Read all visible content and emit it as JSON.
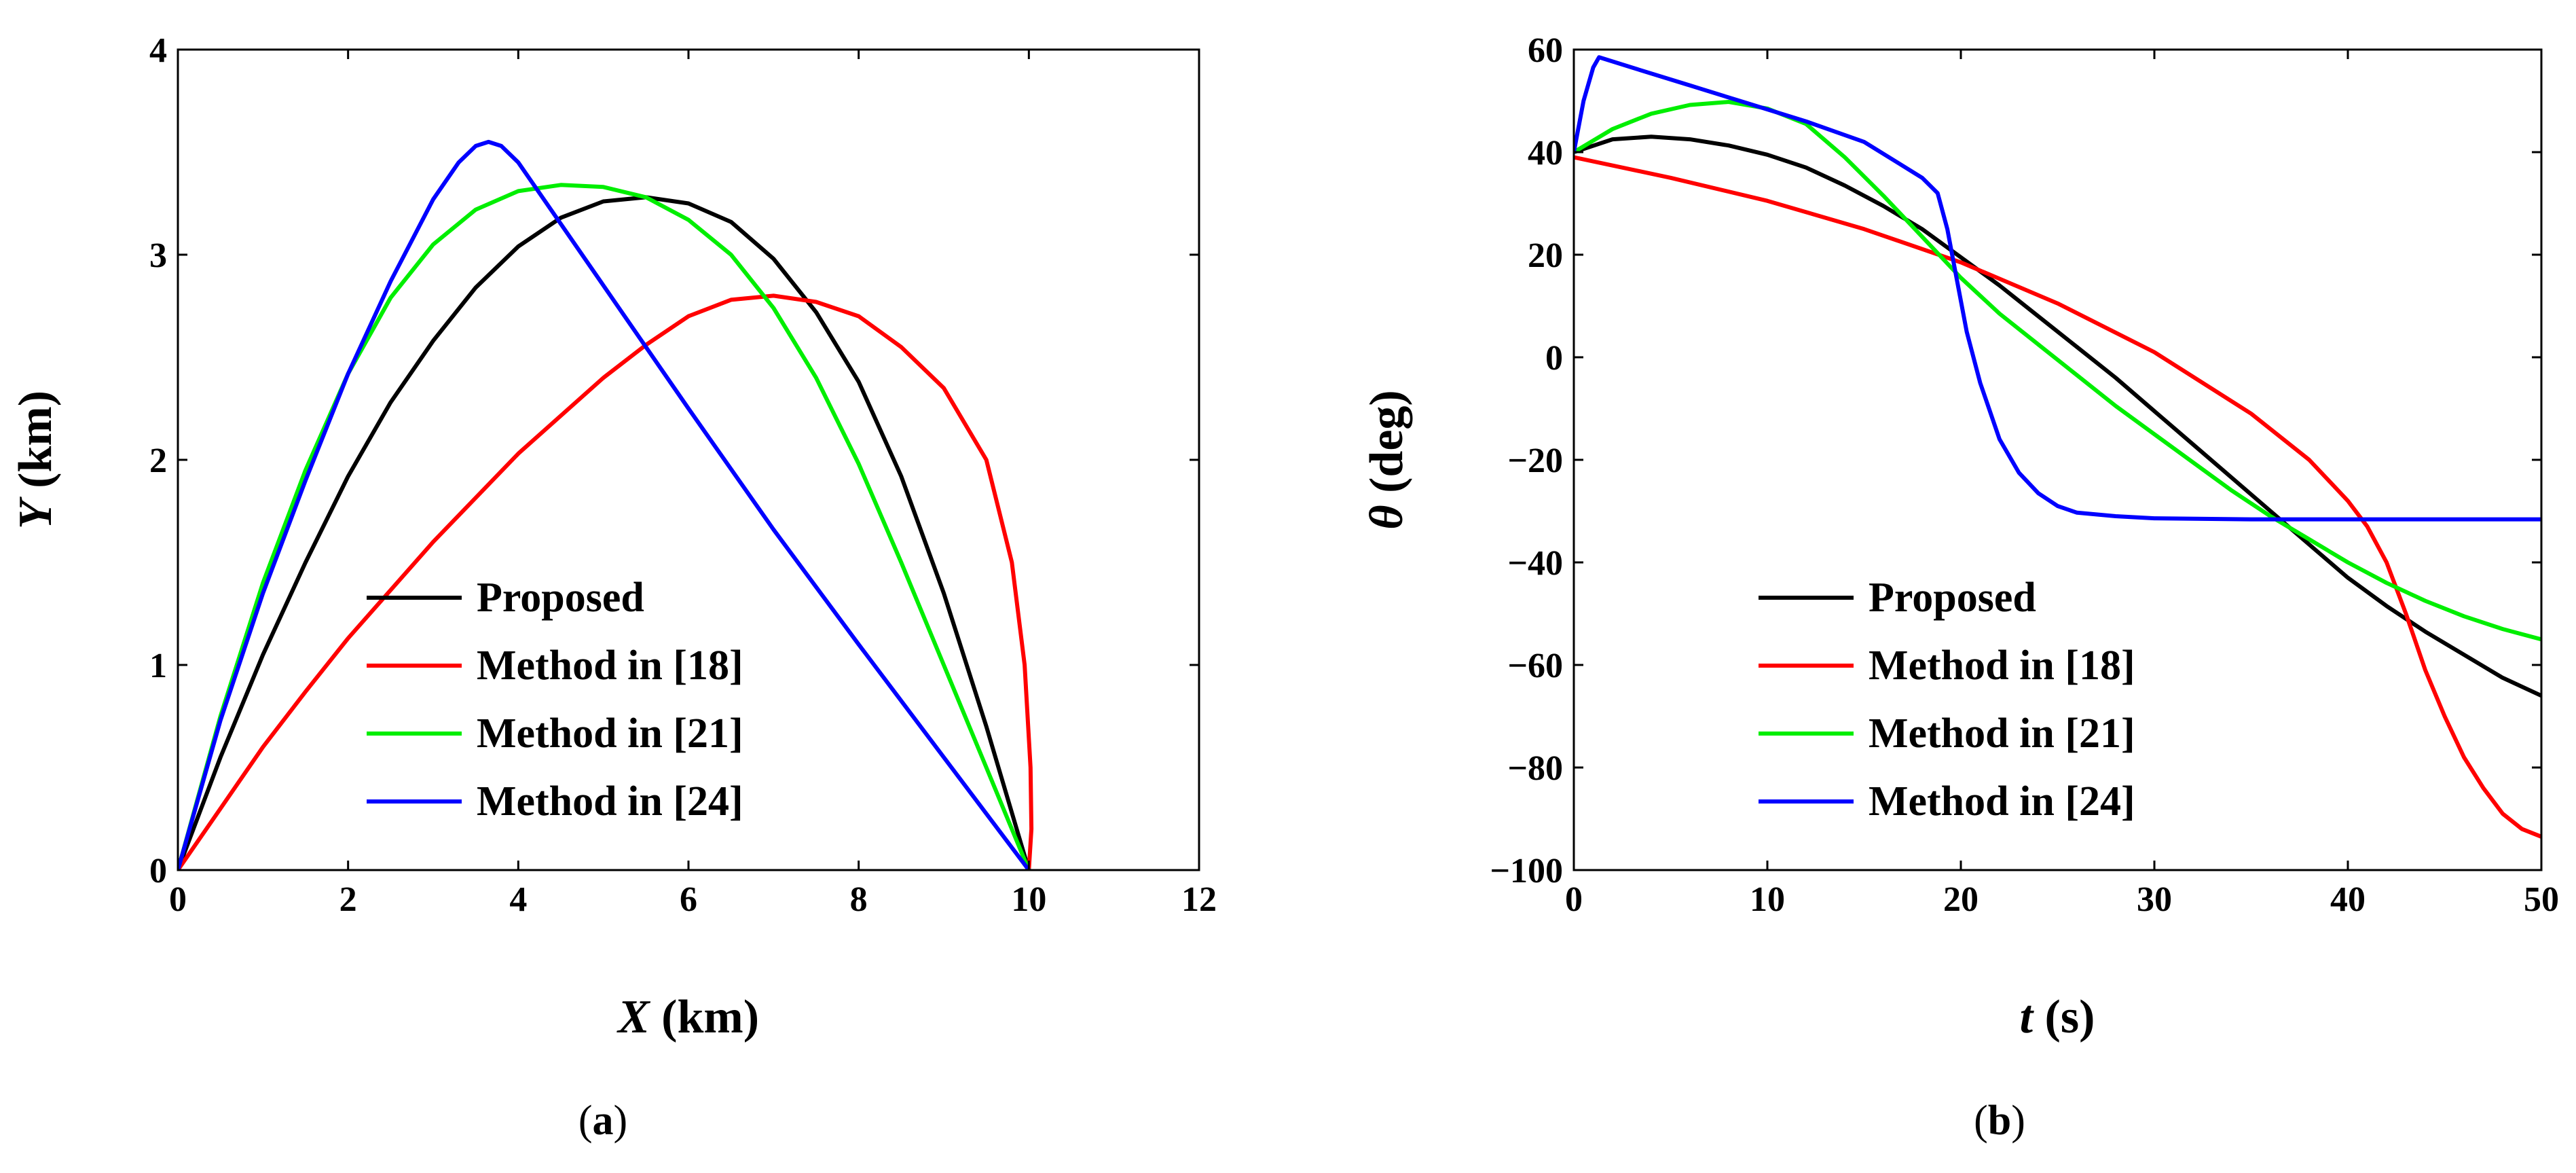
{
  "chart_data": [
    {
      "type": "line",
      "panel_label": "a",
      "xlabel_var": "X",
      "xlabel_unit": "(km)",
      "ylabel_var": "Y",
      "ylabel_unit": "(km)",
      "xlim": [
        0,
        12
      ],
      "ylim": [
        0,
        4
      ],
      "xticks": [
        0,
        2,
        4,
        6,
        8,
        10,
        12
      ],
      "yticks": [
        0,
        1,
        2,
        3,
        4
      ],
      "legend_position": "lower-center",
      "series": [
        {
          "name": "Proposed",
          "color": "#000000",
          "x": [
            0,
            0.5,
            1,
            1.5,
            2,
            2.5,
            3,
            3.5,
            4,
            4.5,
            5,
            5.5,
            6,
            6.5,
            7,
            7.5,
            8,
            8.5,
            9,
            9.5,
            10
          ],
          "y": [
            0,
            0.55,
            1.05,
            1.5,
            1.92,
            2.28,
            2.58,
            2.84,
            3.04,
            3.18,
            3.26,
            3.28,
            3.25,
            3.16,
            2.98,
            2.72,
            2.38,
            1.92,
            1.35,
            0.7,
            0
          ]
        },
        {
          "name": "Method in [18]",
          "color": "#ff0000",
          "x": [
            0,
            0.5,
            1,
            1.5,
            2,
            3,
            4,
            5,
            5.5,
            6,
            6.5,
            7,
            7.5,
            8,
            8.5,
            9,
            9.5,
            9.8,
            9.95,
            10.02,
            10.03,
            10
          ],
          "y": [
            0,
            0.3,
            0.6,
            0.87,
            1.13,
            1.6,
            2.03,
            2.4,
            2.56,
            2.7,
            2.78,
            2.8,
            2.77,
            2.7,
            2.55,
            2.35,
            2.0,
            1.5,
            1.0,
            0.5,
            0.2,
            0
          ]
        },
        {
          "name": "Method in [21]",
          "color": "#00ee00",
          "x": [
            0,
            0.5,
            1,
            1.5,
            2,
            2.5,
            3,
            3.5,
            4,
            4.5,
            5,
            5.5,
            6,
            6.5,
            7,
            7.5,
            8,
            8.5,
            9,
            9.5,
            10
          ],
          "y": [
            0,
            0.75,
            1.4,
            1.95,
            2.42,
            2.79,
            3.05,
            3.22,
            3.31,
            3.34,
            3.33,
            3.28,
            3.17,
            3.0,
            2.74,
            2.4,
            1.98,
            1.5,
            1.0,
            0.5,
            0
          ]
        },
        {
          "name": "Method in [24]",
          "color": "#0000ff",
          "x": [
            0,
            0.5,
            1,
            1.5,
            2,
            2.5,
            3,
            3.3,
            3.5,
            3.65,
            3.8,
            4,
            4.5,
            5,
            6,
            7,
            8,
            9,
            10
          ],
          "y": [
            0,
            0.73,
            1.35,
            1.9,
            2.42,
            2.87,
            3.27,
            3.45,
            3.53,
            3.55,
            3.53,
            3.45,
            3.15,
            2.85,
            2.25,
            1.66,
            1.1,
            0.55,
            0
          ]
        }
      ]
    },
    {
      "type": "line",
      "panel_label": "b",
      "xlabel_var": "t",
      "xlabel_unit": "(s)",
      "ylabel_var": "θ",
      "ylabel_unit": "(deg)",
      "xlim": [
        0,
        50
      ],
      "ylim": [
        -100,
        60
      ],
      "xticks": [
        0,
        10,
        20,
        30,
        40,
        50
      ],
      "yticks": [
        -100,
        -80,
        -60,
        -40,
        -20,
        0,
        20,
        40,
        60
      ],
      "legend_position": "lower-center",
      "series": [
        {
          "name": "Proposed",
          "color": "#000000",
          "x": [
            0,
            2,
            4,
            6,
            8,
            10,
            12,
            14,
            16,
            18,
            20,
            22,
            24,
            26,
            28,
            30,
            32,
            34,
            36,
            38,
            40,
            42,
            44,
            46,
            48,
            50
          ],
          "y": [
            40,
            42.5,
            43,
            42.5,
            41.3,
            39.5,
            37,
            33.5,
            29.5,
            25,
            19.5,
            14,
            8,
            2,
            -4,
            -10.5,
            -17,
            -23.5,
            -30,
            -36.5,
            -43,
            -48.5,
            -53.5,
            -58,
            -62.5,
            -66
          ]
        },
        {
          "name": "Method in [18]",
          "color": "#ff0000",
          "x": [
            0,
            5,
            10,
            15,
            20,
            25,
            30,
            35,
            38,
            40,
            41,
            42,
            43,
            44,
            45,
            46,
            47,
            48,
            49,
            50
          ],
          "y": [
            39,
            35,
            30.5,
            25,
            18.5,
            10.5,
            1,
            -11,
            -20,
            -28,
            -33,
            -40,
            -50,
            -61,
            -70,
            -78,
            -84,
            -89,
            -92,
            -93.5
          ]
        },
        {
          "name": "Method in [21]",
          "color": "#00ee00",
          "x": [
            0,
            2,
            4,
            6,
            8,
            10,
            12,
            14,
            16,
            18,
            20,
            22,
            24,
            26,
            28,
            30,
            32,
            34,
            36,
            38,
            40,
            42,
            44,
            46,
            48,
            50
          ],
          "y": [
            40,
            44.5,
            47.5,
            49.2,
            49.8,
            48.5,
            45.5,
            39,
            31.5,
            23.5,
            15.5,
            8.5,
            2.5,
            -3.5,
            -9.5,
            -15,
            -20.5,
            -26,
            -31,
            -35.5,
            -40,
            -44,
            -47.5,
            -50.5,
            -53,
            -55
          ]
        },
        {
          "name": "Method in [24]",
          "color": "#0000ff",
          "x": [
            0,
            0.5,
            1,
            1.3,
            3,
            6,
            9,
            12,
            15,
            18,
            18.8,
            19.3,
            19.8,
            20.3,
            21,
            22,
            23,
            24,
            25,
            26,
            28,
            30,
            35,
            40,
            45,
            50
          ],
          "y": [
            40,
            50,
            56.5,
            58.5,
            56.5,
            53,
            49.5,
            46,
            42,
            35,
            32,
            25,
            15,
            5,
            -5,
            -16,
            -22.5,
            -26.5,
            -29,
            -30.3,
            -31,
            -31.4,
            -31.6,
            -31.6,
            -31.6,
            -31.6
          ]
        }
      ]
    }
  ]
}
